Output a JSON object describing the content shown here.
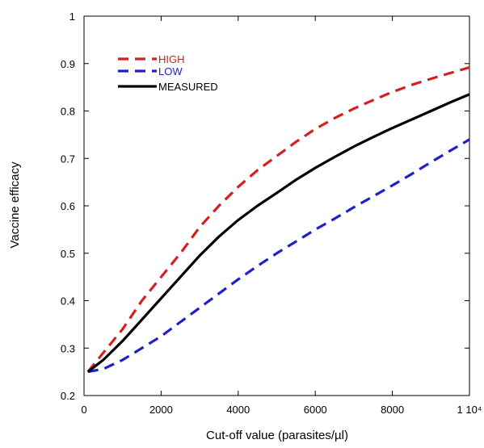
{
  "chart_data": {
    "type": "line",
    "title": "",
    "xlabel": "Cut-off value (parasites/µl)",
    "ylabel": "Vaccine efficacy",
    "xlim": [
      0,
      10000
    ],
    "ylim": [
      0.2,
      1.0
    ],
    "x_ticks": [
      0,
      2000,
      4000,
      6000,
      8000,
      10000
    ],
    "x_tick_labels": [
      "0",
      "2000",
      "4000",
      "6000",
      "8000",
      "1 10⁴"
    ],
    "y_ticks": [
      0.2,
      0.3,
      0.4,
      0.5,
      0.6,
      0.7,
      0.8,
      0.9,
      1.0
    ],
    "y_tick_labels": [
      "0.2",
      "0.3",
      "0.4",
      "0.5",
      "0.6",
      "0.7",
      "0.8",
      "0.9",
      "1"
    ],
    "grid": false,
    "legend_position": "top-left",
    "x": [
      100,
      500,
      1000,
      1500,
      2000,
      2500,
      3000,
      3500,
      4000,
      4500,
      5000,
      5500,
      6000,
      6500,
      7000,
      7500,
      8000,
      8500,
      9000,
      9500,
      10000
    ],
    "series": [
      {
        "name": "HIGH",
        "color": "#d42020",
        "style": "dashed",
        "values": [
          0.25,
          0.29,
          0.34,
          0.4,
          0.45,
          0.5,
          0.555,
          0.6,
          0.64,
          0.675,
          0.705,
          0.735,
          0.762,
          0.785,
          0.805,
          0.823,
          0.84,
          0.855,
          0.868,
          0.88,
          0.892
        ]
      },
      {
        "name": "LOW",
        "color": "#2020c8",
        "style": "dashed",
        "values": [
          0.25,
          0.256,
          0.275,
          0.3,
          0.325,
          0.355,
          0.385,
          0.415,
          0.445,
          0.473,
          0.5,
          0.525,
          0.55,
          0.573,
          0.597,
          0.62,
          0.643,
          0.667,
          0.692,
          0.716,
          0.74
        ]
      },
      {
        "name": "MEASURED",
        "color": "#000000",
        "style": "solid",
        "values": [
          0.25,
          0.275,
          0.315,
          0.36,
          0.405,
          0.45,
          0.495,
          0.535,
          0.57,
          0.6,
          0.627,
          0.655,
          0.68,
          0.703,
          0.725,
          0.745,
          0.764,
          0.782,
          0.8,
          0.818,
          0.835
        ]
      }
    ]
  }
}
